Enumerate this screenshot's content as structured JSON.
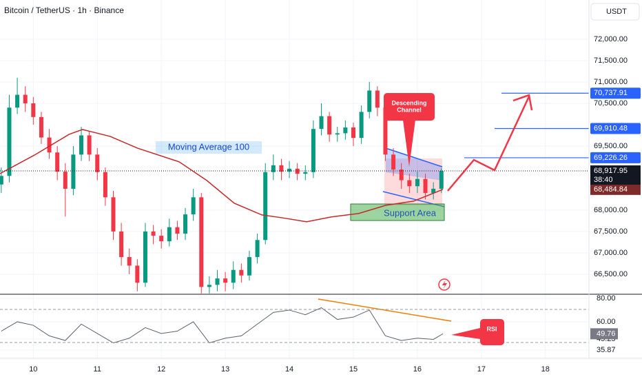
{
  "header": {
    "title": "Bitcoin / TetherUS · 1h · Binance",
    "currency": "USDT"
  },
  "chart_data": [
    {
      "type": "candlestick",
      "x": [
        9.5,
        9.625,
        9.75,
        9.875,
        10.0,
        10.125,
        10.25,
        10.375,
        10.5,
        10.625,
        10.75,
        10.875,
        11.0,
        11.125,
        11.25,
        11.375,
        11.5,
        11.625,
        11.75,
        11.875,
        12.0,
        12.125,
        12.25,
        12.375,
        12.5,
        12.625,
        12.75,
        12.875,
        13.0,
        13.125,
        13.25,
        13.375,
        13.5,
        13.625,
        13.75,
        13.875,
        14.0,
        14.125,
        14.25,
        14.375,
        14.5,
        14.625,
        14.75,
        14.875,
        15.0,
        15.125,
        15.25,
        15.375,
        15.5,
        15.625,
        15.75,
        15.875,
        16.0,
        16.125,
        16.25,
        16.375
      ],
      "open": [
        68600,
        68800,
        70400,
        70700,
        70500,
        70180,
        69700,
        69350,
        68900,
        68500,
        69300,
        69750,
        69300,
        68890,
        68300,
        67500,
        66900,
        66700,
        66300,
        67500,
        67400,
        67270,
        67600,
        67450,
        67900,
        68300,
        66200,
        66250,
        66400,
        66300,
        66600,
        66470,
        66900,
        67300,
        68890,
        69050,
        68900,
        68970,
        68850,
        68890,
        69900,
        70200,
        69770,
        69800,
        69935,
        69690,
        70300,
        70800,
        70400,
        69300,
        68950,
        68700,
        68560,
        68730,
        68400,
        68500
      ],
      "high": [
        69000,
        70700,
        71100,
        70900,
        70650,
        70300,
        69900,
        69500,
        69100,
        69500,
        69950,
        69850,
        69450,
        69000,
        68450,
        67700,
        67100,
        66850,
        67700,
        67650,
        67550,
        67800,
        67750,
        68050,
        68500,
        68400,
        66450,
        66600,
        66550,
        66800,
        66750,
        67050,
        67450,
        69100,
        69300,
        69200,
        69150,
        69100,
        69050,
        70100,
        70500,
        70300,
        69950,
        70100,
        70050,
        70450,
        71000,
        70900,
        70450,
        69450,
        69100,
        68850,
        68900,
        68850,
        68650,
        68980
      ],
      "low": [
        68400,
        68650,
        70250,
        70300,
        70000,
        69550,
        69200,
        68700,
        67850,
        68350,
        69150,
        69150,
        68700,
        68100,
        67300,
        66700,
        66500,
        66100,
        66200,
        67200,
        67100,
        67150,
        67300,
        67300,
        67750,
        66050,
        66050,
        66100,
        66100,
        66150,
        66300,
        66350,
        66750,
        67200,
        68700,
        68700,
        68750,
        68700,
        68700,
        68750,
        69750,
        69600,
        69600,
        69650,
        69500,
        69550,
        70150,
        70200,
        69150,
        68800,
        68500,
        68400,
        68400,
        68250,
        68250,
        68400
      ],
      "close": [
        68800,
        70400,
        70700,
        70500,
        70180,
        69700,
        69350,
        68900,
        68500,
        69300,
        69750,
        69300,
        68890,
        68300,
        67500,
        66900,
        66700,
        66300,
        67500,
        67400,
        67270,
        67600,
        67450,
        67900,
        68300,
        66200,
        66250,
        66400,
        66300,
        66600,
        66470,
        66900,
        67300,
        68890,
        69050,
        68900,
        68970,
        68850,
        68890,
        69900,
        70200,
        69770,
        69800,
        69935,
        69690,
        70300,
        70800,
        70400,
        69300,
        68950,
        68700,
        68560,
        68730,
        68400,
        68500,
        68917.95
      ],
      "up_color": "#089981",
      "down_color": "#f23645",
      "series": [
        {
          "name": "Moving Average 100",
          "color": "#c62828",
          "x": [
            9.48,
            10.02,
            10.56,
            10.77,
            11.2,
            11.63,
            12.28,
            12.71,
            13.14,
            13.57,
            13.89,
            14.27,
            14.65,
            15.08,
            15.51,
            15.94,
            16.4
          ],
          "values": [
            68855,
            69290,
            69774,
            69887,
            69726,
            69450,
            69130,
            68694,
            68160,
            67887,
            67820,
            67726,
            67840,
            67920,
            68113,
            68210,
            68484.84
          ],
          "value_label": "68,484.84"
        }
      ],
      "xlim": [
        9.48,
        18.68
      ],
      "ylim": [
        66030,
        72920
      ],
      "yticks": [
        {
          "value": 72000,
          "label": "72,000.00"
        },
        {
          "value": 71500,
          "label": "71,500.00"
        },
        {
          "value": 71000,
          "label": "71,000.00"
        },
        {
          "value": 70500,
          "label": "70,500.00"
        },
        {
          "value": 69500,
          "label": "69,500.00"
        },
        {
          "value": 68000,
          "label": "68,000.00"
        },
        {
          "value": 67500,
          "label": "67,500.00"
        },
        {
          "value": 67000,
          "label": "67,000.00"
        },
        {
          "value": 66500,
          "label": "66,500.00"
        }
      ],
      "levels": [
        {
          "value": 70737.91,
          "label": "70,737.91"
        },
        {
          "value": 69910.48,
          "label": "69,910.48"
        },
        {
          "value": 69226.26,
          "label": "69,226.26"
        }
      ],
      "level_color": "#2962ff",
      "last_price": {
        "value": 68917.95,
        "label": "68,917.95"
      },
      "countdown": "38:40",
      "callout_lines": [
        "Descending",
        "Channel"
      ],
      "support_label": "Support Area",
      "grid": true
    },
    {
      "type": "line",
      "series": [
        {
          "name": "RSI",
          "color": "#5d606b",
          "x": [
            9.5,
            9.75,
            10.0,
            10.25,
            10.5,
            10.75,
            11.0,
            11.25,
            11.5,
            11.75,
            12.0,
            12.25,
            12.5,
            12.75,
            13.0,
            13.25,
            13.5,
            13.75,
            14.0,
            14.25,
            14.5,
            14.75,
            15.0,
            15.25,
            15.5,
            15.75,
            16.0,
            16.25,
            16.4
          ],
          "values": [
            52,
            60,
            57,
            48,
            44,
            58,
            50,
            42,
            46,
            55,
            50,
            52,
            60,
            42,
            46,
            48,
            58,
            68,
            70,
            66,
            72,
            62,
            64,
            70,
            48,
            44,
            46,
            45,
            49.76
          ],
          "value_label": "49.76"
        }
      ],
      "xlim": [
        9.48,
        18.68
      ],
      "xticks": [
        10,
        11,
        12,
        13,
        14,
        15,
        16,
        17,
        18
      ],
      "ylim": [
        28.8,
        83.5
      ],
      "yticks": [
        {
          "value": 80,
          "label": "80.00"
        },
        {
          "value": 60,
          "label": "60.00"
        },
        45.25,
        35.87
      ],
      "grid": true
    }
  ]
}
